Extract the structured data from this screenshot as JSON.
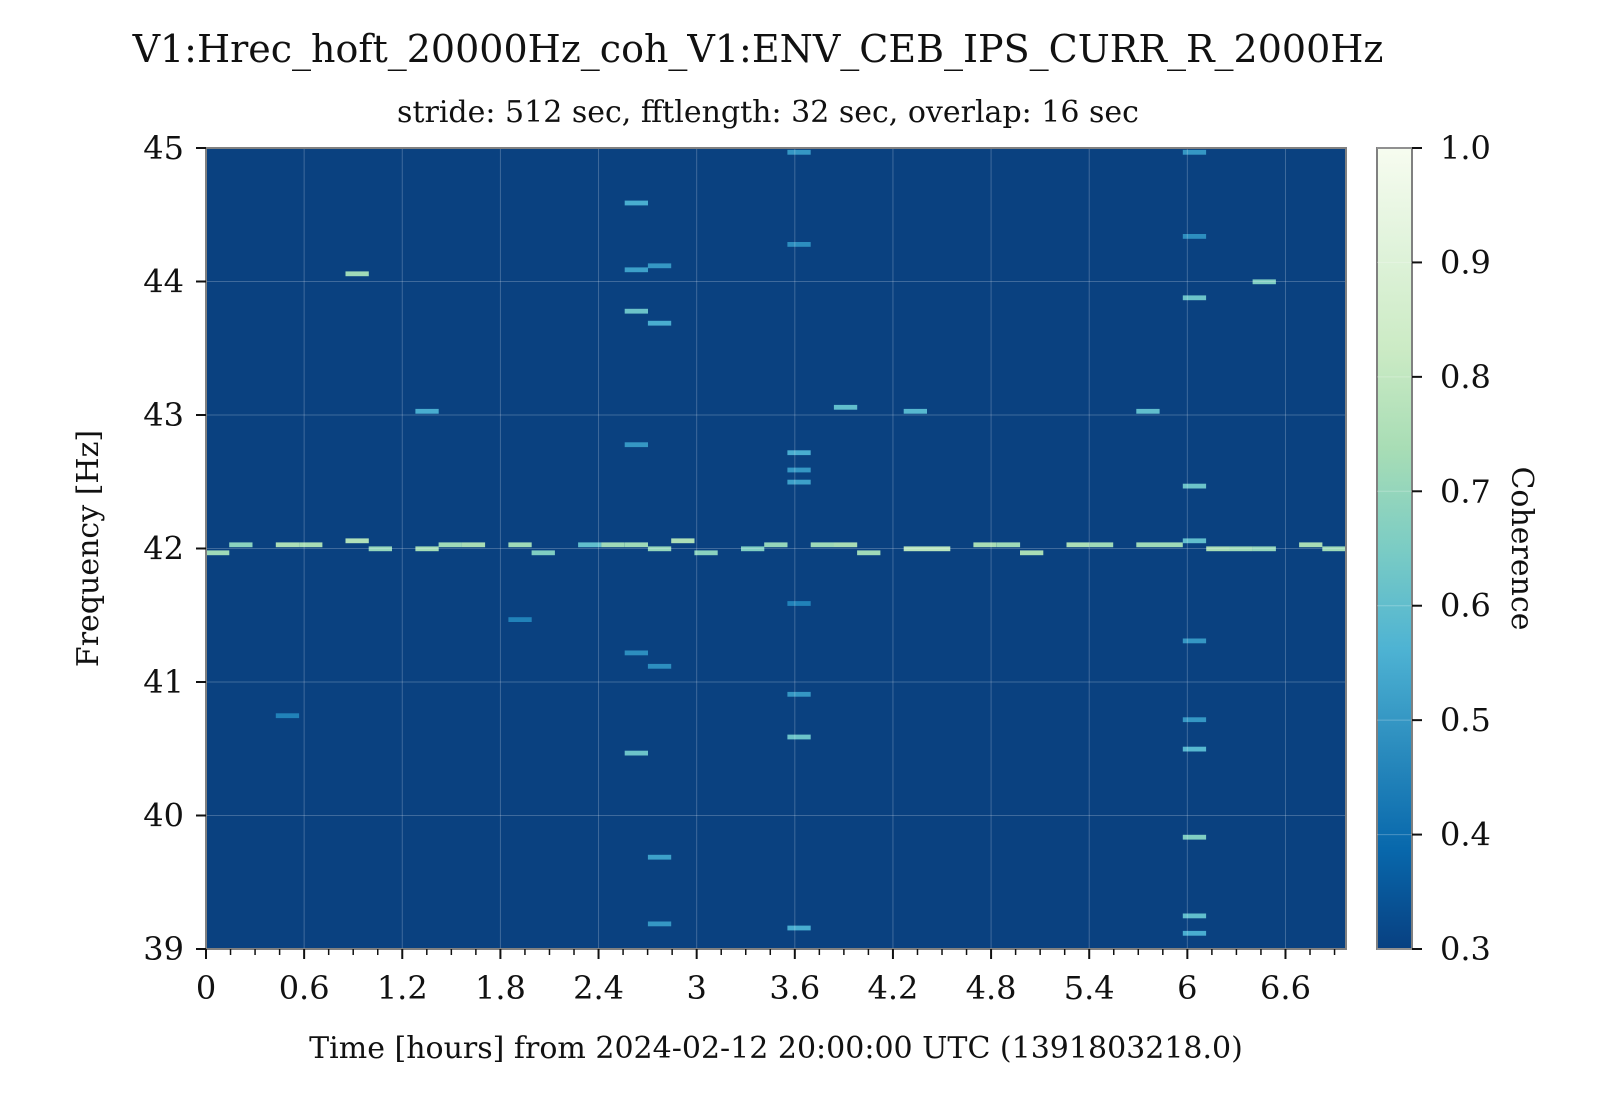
{
  "chart_data": {
    "type": "heatmap",
    "title": "V1:Hrec_hoft_20000Hz_coh_V1:ENV_CEB_IPS_CURR_R_2000Hz",
    "subtitle": "stride: 512 sec, fftlength: 32 sec, overlap: 16 sec",
    "xlabel": "Time [hours] from 2024-02-12 20:00:00 UTC (1391803218.0)",
    "ylabel": "Frequency [Hz]",
    "colorbar_label": "Coherence",
    "xlim": [
      0,
      6.97
    ],
    "ylim": [
      39,
      45
    ],
    "x_ticks": [
      0,
      0.6,
      1.2,
      1.8,
      2.4,
      3,
      3.6,
      4.2,
      4.8,
      5.4,
      6,
      6.6
    ],
    "x_tick_labels": [
      "0",
      "0.6",
      "1.2",
      "1.8",
      "2.4",
      "3",
      "3.6",
      "4.2",
      "4.8",
      "5.4",
      "6",
      "6.6"
    ],
    "y_ticks": [
      39,
      40,
      41,
      42,
      43,
      44,
      45
    ],
    "y_tick_labels": [
      "39",
      "40",
      "41",
      "42",
      "43",
      "44",
      "45"
    ],
    "colorbar_range": [
      0.3,
      1.0
    ],
    "colorbar_ticks": [
      0.3,
      0.4,
      0.5,
      0.6,
      0.7,
      0.8,
      0.9,
      1.0
    ],
    "colorbar_tick_labels": [
      "0.3",
      "0.4",
      "0.5",
      "0.6",
      "0.7",
      "0.8",
      "0.9",
      "1.0"
    ],
    "colormap": [
      "#084081",
      "#0868ac",
      "#2b8cbe",
      "#4eb3d3",
      "#7bccc4",
      "#a8ddb5",
      "#ccebc5",
      "#e0f3db",
      "#f7fcf0"
    ],
    "background_color": "#0a4180",
    "grid": true,
    "time_bin_hours": 0.1422,
    "freq_bin_hz": 0.03125,
    "dominant_line": {
      "frequency": 42.0,
      "coherence_range": [
        0.45,
        0.8
      ]
    },
    "active_columns_hours": [
      2.6,
      3.6,
      6.0
    ],
    "hot_cells": [
      {
        "t": 0.0,
        "f": 41.97,
        "v": 0.72
      },
      {
        "t": 0.142,
        "f": 42.03,
        "v": 0.68
      },
      {
        "t": 0.427,
        "f": 42.03,
        "v": 0.75
      },
      {
        "t": 0.569,
        "f": 42.03,
        "v": 0.74
      },
      {
        "t": 0.853,
        "f": 42.06,
        "v": 0.76
      },
      {
        "t": 0.995,
        "f": 42.0,
        "v": 0.7
      },
      {
        "t": 1.28,
        "f": 42.0,
        "v": 0.73
      },
      {
        "t": 1.422,
        "f": 42.03,
        "v": 0.72
      },
      {
        "t": 1.564,
        "f": 42.03,
        "v": 0.74
      },
      {
        "t": 1.849,
        "f": 42.03,
        "v": 0.72
      },
      {
        "t": 1.991,
        "f": 41.97,
        "v": 0.66
      },
      {
        "t": 2.275,
        "f": 42.03,
        "v": 0.6
      },
      {
        "t": 2.417,
        "f": 42.03,
        "v": 0.72
      },
      {
        "t": 2.56,
        "f": 42.03,
        "v": 0.72
      },
      {
        "t": 2.702,
        "f": 42.0,
        "v": 0.7
      },
      {
        "t": 2.844,
        "f": 42.06,
        "v": 0.75
      },
      {
        "t": 2.986,
        "f": 41.97,
        "v": 0.68
      },
      {
        "t": 3.271,
        "f": 42.0,
        "v": 0.66
      },
      {
        "t": 3.413,
        "f": 42.03,
        "v": 0.7
      },
      {
        "t": 3.697,
        "f": 42.03,
        "v": 0.72
      },
      {
        "t": 3.839,
        "f": 42.03,
        "v": 0.74
      },
      {
        "t": 3.981,
        "f": 41.97,
        "v": 0.72
      },
      {
        "t": 4.266,
        "f": 42.0,
        "v": 0.78
      },
      {
        "t": 4.408,
        "f": 42.0,
        "v": 0.78
      },
      {
        "t": 4.692,
        "f": 42.03,
        "v": 0.74
      },
      {
        "t": 4.835,
        "f": 42.03,
        "v": 0.72
      },
      {
        "t": 4.977,
        "f": 41.97,
        "v": 0.74
      },
      {
        "t": 5.261,
        "f": 42.03,
        "v": 0.75
      },
      {
        "t": 5.404,
        "f": 42.03,
        "v": 0.72
      },
      {
        "t": 5.688,
        "f": 42.03,
        "v": 0.72
      },
      {
        "t": 5.83,
        "f": 42.03,
        "v": 0.72
      },
      {
        "t": 5.972,
        "f": 42.06,
        "v": 0.6
      },
      {
        "t": 6.115,
        "f": 42.0,
        "v": 0.74
      },
      {
        "t": 6.257,
        "f": 42.0,
        "v": 0.72
      },
      {
        "t": 6.399,
        "f": 42.0,
        "v": 0.7
      },
      {
        "t": 6.683,
        "f": 42.03,
        "v": 0.74
      },
      {
        "t": 6.825,
        "f": 42.0,
        "v": 0.72
      },
      {
        "t": 0.853,
        "f": 44.06,
        "v": 0.72
      },
      {
        "t": 6.399,
        "f": 44.0,
        "v": 0.66
      },
      {
        "t": 5.972,
        "f": 43.88,
        "v": 0.62
      },
      {
        "t": 2.56,
        "f": 43.78,
        "v": 0.62
      },
      {
        "t": 2.702,
        "f": 43.69,
        "v": 0.55
      },
      {
        "t": 2.56,
        "f": 44.59,
        "v": 0.55
      },
      {
        "t": 2.56,
        "f": 44.09,
        "v": 0.52
      },
      {
        "t": 2.702,
        "f": 44.12,
        "v": 0.5
      },
      {
        "t": 1.28,
        "f": 43.03,
        "v": 0.55
      },
      {
        "t": 3.839,
        "f": 43.06,
        "v": 0.6
      },
      {
        "t": 4.266,
        "f": 43.03,
        "v": 0.58
      },
      {
        "t": 5.688,
        "f": 43.03,
        "v": 0.6
      },
      {
        "t": 3.555,
        "f": 42.72,
        "v": 0.55
      },
      {
        "t": 3.555,
        "f": 42.5,
        "v": 0.52
      },
      {
        "t": 3.555,
        "f": 42.59,
        "v": 0.5
      },
      {
        "t": 5.972,
        "f": 42.47,
        "v": 0.62
      },
      {
        "t": 2.56,
        "f": 42.78,
        "v": 0.5
      },
      {
        "t": 2.56,
        "f": 40.47,
        "v": 0.62
      },
      {
        "t": 3.555,
        "f": 40.59,
        "v": 0.62
      },
      {
        "t": 5.972,
        "f": 40.5,
        "v": 0.58
      },
      {
        "t": 5.972,
        "f": 39.84,
        "v": 0.66
      },
      {
        "t": 5.972,
        "f": 39.12,
        "v": 0.55
      },
      {
        "t": 3.555,
        "f": 39.16,
        "v": 0.55
      },
      {
        "t": 2.702,
        "f": 39.19,
        "v": 0.5
      },
      {
        "t": 3.555,
        "f": 40.91,
        "v": 0.5
      },
      {
        "t": 5.972,
        "f": 41.31,
        "v": 0.5
      },
      {
        "t": 2.702,
        "f": 41.12,
        "v": 0.48
      },
      {
        "t": 2.56,
        "f": 41.22,
        "v": 0.48
      },
      {
        "t": 1.849,
        "f": 41.47,
        "v": 0.45
      },
      {
        "t": 0.427,
        "f": 40.75,
        "v": 0.45
      },
      {
        "t": 2.702,
        "f": 39.69,
        "v": 0.52
      },
      {
        "t": 3.555,
        "f": 41.59,
        "v": 0.45
      },
      {
        "t": 5.972,
        "f": 40.72,
        "v": 0.5
      },
      {
        "t": 5.972,
        "f": 39.25,
        "v": 0.6
      },
      {
        "t": 3.555,
        "f": 44.97,
        "v": 0.5
      },
      {
        "t": 3.555,
        "f": 44.28,
        "v": 0.48
      },
      {
        "t": 5.972,
        "f": 44.97,
        "v": 0.5
      },
      {
        "t": 5.972,
        "f": 44.34,
        "v": 0.48
      }
    ]
  }
}
